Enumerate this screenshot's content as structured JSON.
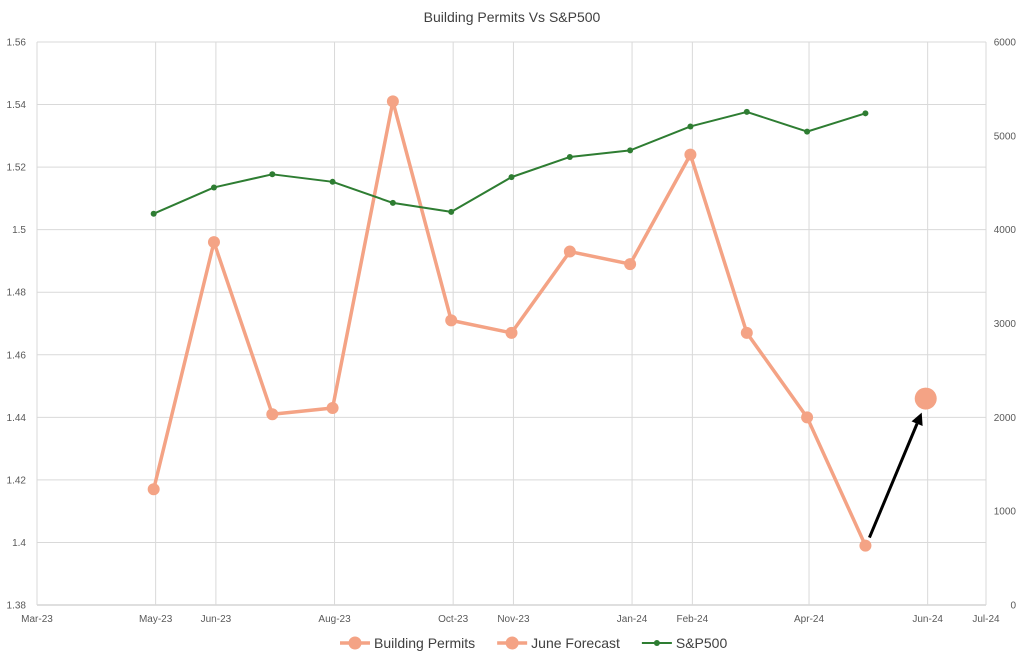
{
  "chart_data": {
    "type": "line",
    "title": "Building Permits Vs S&P500",
    "x_ticks": [
      "Mar-23",
      "May-23",
      "Jun-23",
      "Aug-23",
      "Oct-23",
      "Nov-23",
      "Jan-24",
      "Feb-24",
      "Apr-24",
      "Jun-24",
      "Jul-24"
    ],
    "x_tick_dates": [
      "2023-03-01",
      "2023-05-01",
      "2023-06-01",
      "2023-08-01",
      "2023-10-01",
      "2023-11-01",
      "2024-01-01",
      "2024-02-01",
      "2024-04-01",
      "2024-06-01",
      "2024-07-01"
    ],
    "x_range": [
      "2023-03-01",
      "2024-07-01"
    ],
    "y_left": {
      "min": 1.38,
      "max": 1.56,
      "ticks": [
        "1.38",
        "1.4",
        "1.42",
        "1.44",
        "1.46",
        "1.48",
        "1.5",
        "1.52",
        "1.54",
        "1.56"
      ]
    },
    "y_right": {
      "min": 0,
      "max": 6000,
      "ticks": [
        "0",
        "1000",
        "2000",
        "3000",
        "4000",
        "5000",
        "6000"
      ]
    },
    "grid": true,
    "legend_position": "bottom",
    "series": [
      {
        "name": "Building Permits",
        "axis": "left",
        "color": "#F4A385",
        "x": [
          "2023-04-30",
          "2023-05-31",
          "2023-06-30",
          "2023-07-31",
          "2023-08-31",
          "2023-09-30",
          "2023-10-31",
          "2023-11-30",
          "2023-12-31",
          "2024-01-31",
          "2024-02-29",
          "2024-03-31",
          "2024-04-30"
        ],
        "values": [
          1.417,
          1.496,
          1.441,
          1.443,
          1.541,
          1.471,
          1.467,
          1.493,
          1.489,
          1.524,
          1.467,
          1.44,
          1.399
        ]
      },
      {
        "name": "June Forecast",
        "axis": "left",
        "color": "#F4A385",
        "x": [
          "2024-05-31"
        ],
        "values": [
          1.446
        ]
      },
      {
        "name": "S&P500",
        "axis": "right",
        "color": "#2E7D32",
        "x": [
          "2023-04-30",
          "2023-05-31",
          "2023-06-30",
          "2023-07-31",
          "2023-08-31",
          "2023-09-30",
          "2023-10-31",
          "2023-11-30",
          "2023-12-31",
          "2024-01-31",
          "2024-02-29",
          "2024-03-31",
          "2024-04-30"
        ],
        "values": [
          4170,
          4450,
          4590,
          4510,
          4285,
          4190,
          4560,
          4775,
          4845,
          5100,
          5255,
          5045,
          5240
        ]
      }
    ],
    "annotation": {
      "type": "arrow",
      "from": {
        "x": "2024-04-30",
        "y": 1.399
      },
      "to": {
        "x": "2024-05-31",
        "y": 1.446
      },
      "color": "#000000"
    }
  }
}
